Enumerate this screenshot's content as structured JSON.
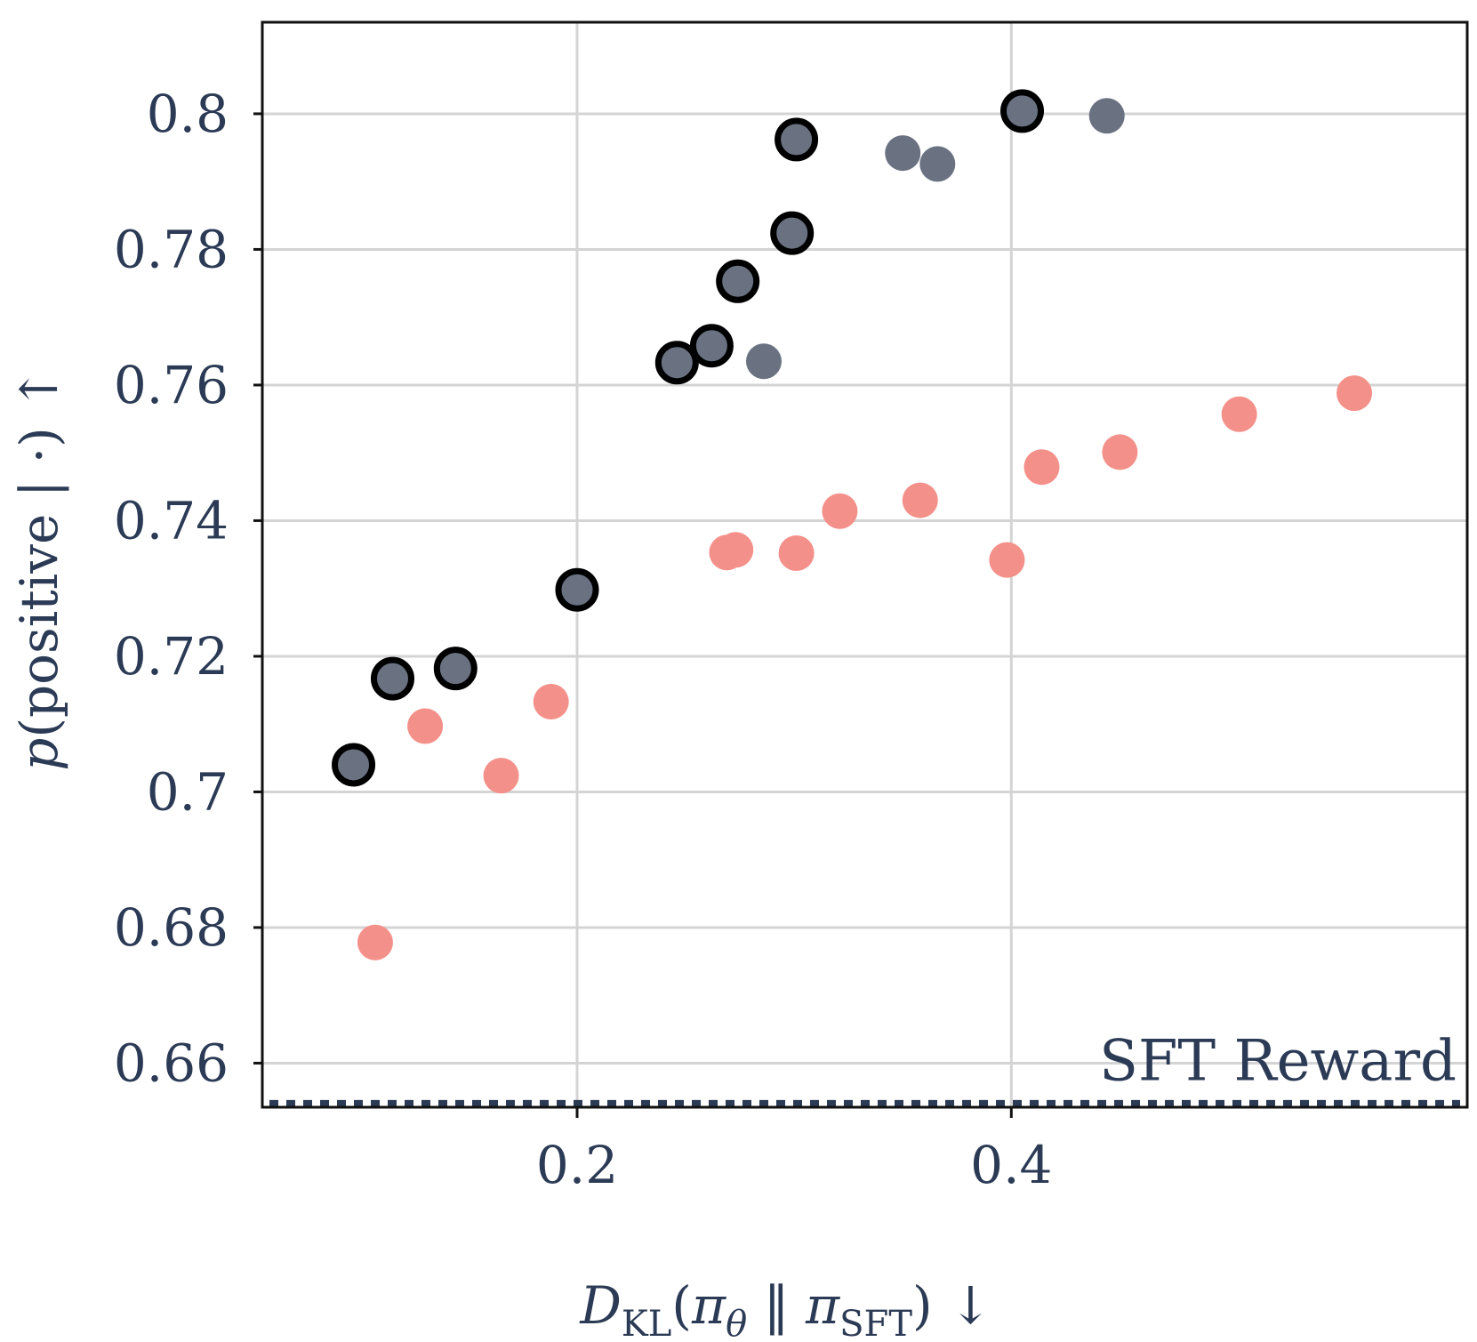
{
  "chart_data": {
    "type": "scatter",
    "xlabel": "D_KL(π_θ || π_SFT) ↓",
    "ylabel": "p(positive | ·) ↑",
    "xlim": [
      0.055,
      0.61
    ],
    "ylim": [
      0.6535,
      0.8135
    ],
    "x_ticks": [
      0.2,
      0.4
    ],
    "x_tick_labels": [
      "0.2",
      "0.4"
    ],
    "y_ticks": [
      0.66,
      0.68,
      0.7,
      0.72,
      0.74,
      0.76,
      0.78,
      0.8
    ],
    "y_tick_labels": [
      "0.66",
      "0.68",
      "0.7",
      "0.72",
      "0.74",
      "0.76",
      "0.78",
      "0.8"
    ],
    "grid": true,
    "reference_line": {
      "label": "SFT Reward",
      "y": 0.6541,
      "style": "dotted",
      "color": "#2b3a55"
    },
    "series": [
      {
        "name": "gray",
        "color": "#6a7282",
        "points": [
          [
            0.286,
            0.7635
          ],
          [
            0.35,
            0.7942
          ],
          [
            0.366,
            0.7926
          ],
          [
            0.444,
            0.7997
          ]
        ]
      },
      {
        "name": "gray-outlined",
        "color": "#6a7282",
        "edge_color": "#000000",
        "points": [
          [
            0.097,
            0.704
          ],
          [
            0.115,
            0.7167
          ],
          [
            0.144,
            0.7182
          ],
          [
            0.2,
            0.7298
          ],
          [
            0.246,
            0.7633
          ],
          [
            0.262,
            0.7658
          ],
          [
            0.274,
            0.7753
          ],
          [
            0.299,
            0.7824
          ],
          [
            0.301,
            0.7962
          ],
          [
            0.405,
            0.8004
          ]
        ]
      },
      {
        "name": "salmon",
        "color": "#f4908a",
        "points": [
          [
            0.107,
            0.6778
          ],
          [
            0.13,
            0.7097
          ],
          [
            0.165,
            0.7024
          ],
          [
            0.188,
            0.7133
          ],
          [
            0.269,
            0.7353
          ],
          [
            0.273,
            0.7357
          ],
          [
            0.301,
            0.7352
          ],
          [
            0.321,
            0.7414
          ],
          [
            0.358,
            0.743
          ],
          [
            0.398,
            0.7342
          ],
          [
            0.414,
            0.7479
          ],
          [
            0.45,
            0.7501
          ],
          [
            0.505,
            0.7557
          ],
          [
            0.558,
            0.7588
          ]
        ]
      }
    ]
  }
}
